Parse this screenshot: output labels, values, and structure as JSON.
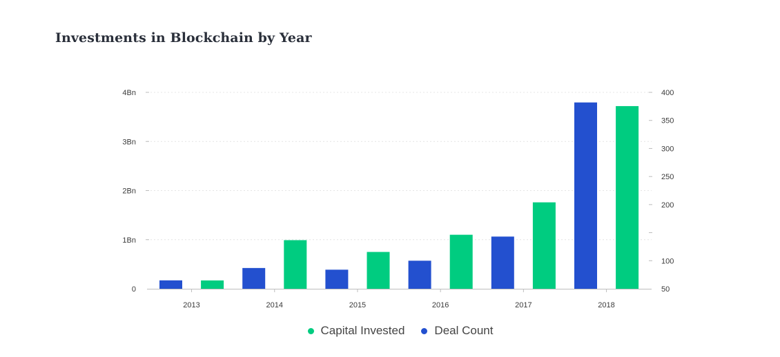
{
  "page": {
    "title": "Investments in Blockchain by Year"
  },
  "chart_data": {
    "type": "bar",
    "title": "Investments in Blockchain by Year",
    "categories": [
      "2013",
      "2014",
      "2015",
      "2016",
      "2017",
      "2018"
    ],
    "series": [
      {
        "name": "Deal Count",
        "axis": "right",
        "color": "#2350cf",
        "values": [
          65,
          87,
          84,
          100,
          143,
          382
        ]
      },
      {
        "name": "Capital Invested",
        "axis": "left",
        "color": "#00cc80",
        "values": [
          0.17,
          0.99,
          0.75,
          1.1,
          1.76,
          3.72
        ]
      }
    ],
    "y_left": {
      "ylim": [
        0,
        4
      ],
      "ticks": [
        0,
        1,
        2,
        3,
        4
      ],
      "tick_labels": [
        "0",
        "1Bn",
        "2Bn",
        "3Bn",
        "4Bn"
      ]
    },
    "y_right": {
      "ylim": [
        50,
        400
      ],
      "ticks": [
        50,
        100,
        150,
        200,
        250,
        300,
        350,
        400
      ],
      "tick_labels": [
        "50",
        "100",
        "",
        "200",
        "250",
        "300",
        "350",
        "400"
      ]
    },
    "grid": true,
    "legend_position": "bottom-center"
  }
}
